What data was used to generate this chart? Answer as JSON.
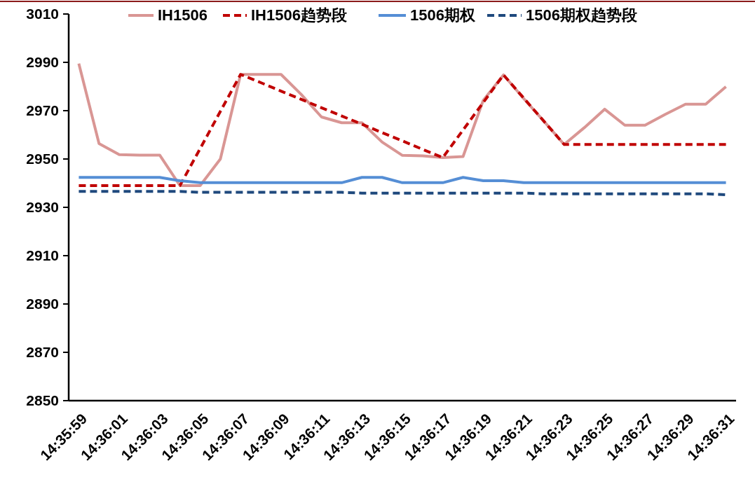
{
  "chart_data": {
    "type": "line",
    "categories": [
      "14:35:59",
      null,
      "14:36:01",
      null,
      "14:36:03",
      null,
      "14:36:05",
      null,
      "14:36:07",
      null,
      "14:36:09",
      null,
      "14:36:11",
      null,
      "14:36:13",
      null,
      "14:36:15",
      null,
      "14:36:17",
      null,
      "14:36:19",
      null,
      "14:36:21",
      null,
      "14:36:23",
      null,
      "14:36:25",
      null,
      "14:36:27",
      null,
      "14:36:29",
      null,
      "14:36:31"
    ],
    "series": [
      {
        "name": "IH1506",
        "color": "#d99694",
        "line_style": "solid",
        "values": [
          2989.5,
          2956.4,
          2951.8,
          2951.6,
          2951.6,
          2939,
          2939,
          2950,
          2985,
          2985,
          2985,
          2976.7,
          2967.4,
          2965,
          2965,
          2957,
          2951.5,
          2951.3,
          2950.6,
          2951,
          2974.3,
          2984.8,
          2975,
          2965.6,
          2956,
          2963,
          2970.6,
          2964,
          2964,
          2968.5,
          2972.7,
          2972.7,
          2979.9
        ]
      },
      {
        "name": "IH1506趋势段",
        "color": "#c00000",
        "line_style": "dashed",
        "values": [
          2939,
          2939,
          2939,
          2939,
          2939,
          2939,
          2954.3,
          2969.7,
          2985,
          2981.6,
          2978.1,
          2974.7,
          2971.2,
          2967.8,
          2964.4,
          2960.9,
          2957.5,
          2954,
          2950.6,
          2962,
          2973.4,
          2984.8,
          2975.2,
          2965.6,
          2956,
          2956,
          2956,
          2956,
          2956,
          2956,
          2956,
          2956,
          2956
        ]
      },
      {
        "name": "1506期权",
        "color": "#558ed5",
        "line_style": "solid",
        "values": [
          2942.4,
          2942.4,
          2942.4,
          2942.4,
          2942.4,
          2941,
          2940.2,
          2940.2,
          2940.2,
          2940.2,
          2940.2,
          2940.2,
          2940.2,
          2940.2,
          2942.4,
          2942.4,
          2940.2,
          2940.2,
          2940.2,
          2942.4,
          2941,
          2941,
          2940.2,
          2940.2,
          2940.2,
          2940.2,
          2940.2,
          2940.2,
          2940.2,
          2940.2,
          2940.2,
          2940.2,
          2940.2
        ]
      },
      {
        "name": "1506期权趋势段",
        "color": "#1f497d",
        "line_style": "dashed",
        "values": [
          2936.6,
          2936.6,
          2936.6,
          2936.6,
          2936.6,
          2936.6,
          2936.2,
          2936.2,
          2936.2,
          2936.2,
          2936.2,
          2936.2,
          2936.2,
          2936.2,
          2935.9,
          2935.9,
          2935.9,
          2935.9,
          2935.9,
          2935.9,
          2935.9,
          2935.9,
          2935.9,
          2935.6,
          2935.6,
          2935.6,
          2935.6,
          2935.6,
          2935.6,
          2935.6,
          2935.6,
          2935.6,
          2935.2
        ]
      }
    ],
    "ylim": [
      2850,
      3010
    ],
    "yticks": [
      2850,
      2870,
      2890,
      2910,
      2930,
      2950,
      2970,
      2990,
      3010
    ],
    "grid": false,
    "legend": "top",
    "marker": "none"
  }
}
